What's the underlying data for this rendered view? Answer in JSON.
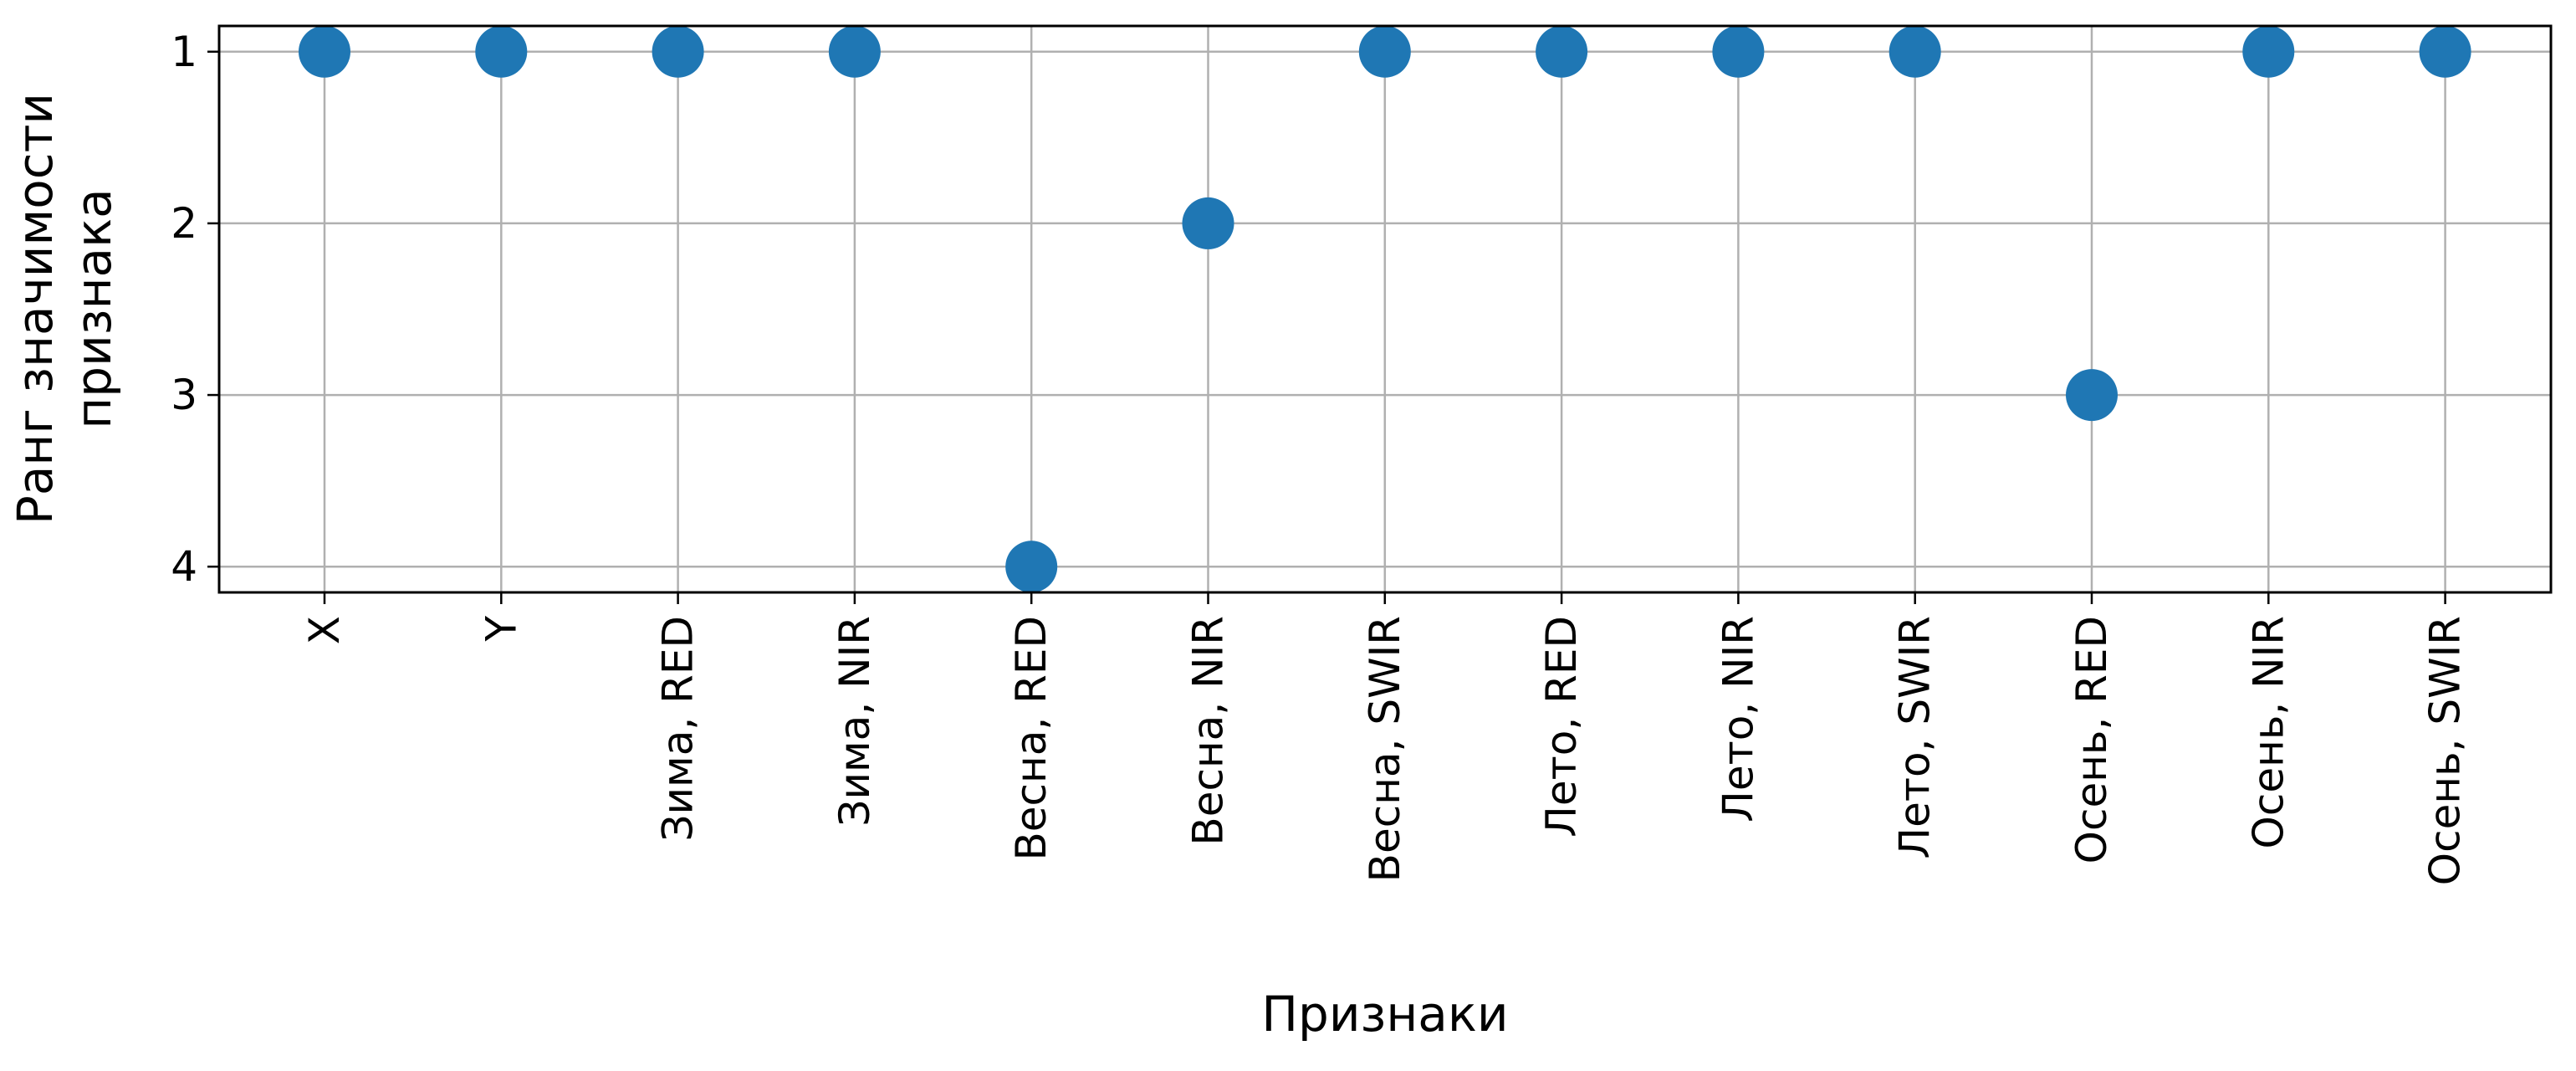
{
  "chart_data": {
    "type": "scatter",
    "title": "",
    "xlabel": "Признаки",
    "ylabel": [
      "Ранг значимости",
      "признака"
    ],
    "categories": [
      "X",
      "Y",
      "Зима, RED",
      "Зима, NIR",
      "Весна, RED",
      "Весна, NIR",
      "Весна, SWIR",
      "Лето, RED",
      "Лето, NIR",
      "Лето, SWIR",
      "Осень, RED",
      "Осень, NIR",
      "Осень, SWIR"
    ],
    "values": [
      1,
      1,
      1,
      1,
      4,
      2,
      1,
      1,
      1,
      1,
      3,
      1,
      1
    ],
    "yticks": [
      "1",
      "2",
      "3",
      "4"
    ],
    "y_inverted": true,
    "ylim": [
      4.15,
      0.85
    ],
    "grid": true,
    "legend": "none",
    "colors": {
      "marker": "#1f77b4",
      "grid": "#b0b0b0",
      "axes": "#000000"
    }
  }
}
